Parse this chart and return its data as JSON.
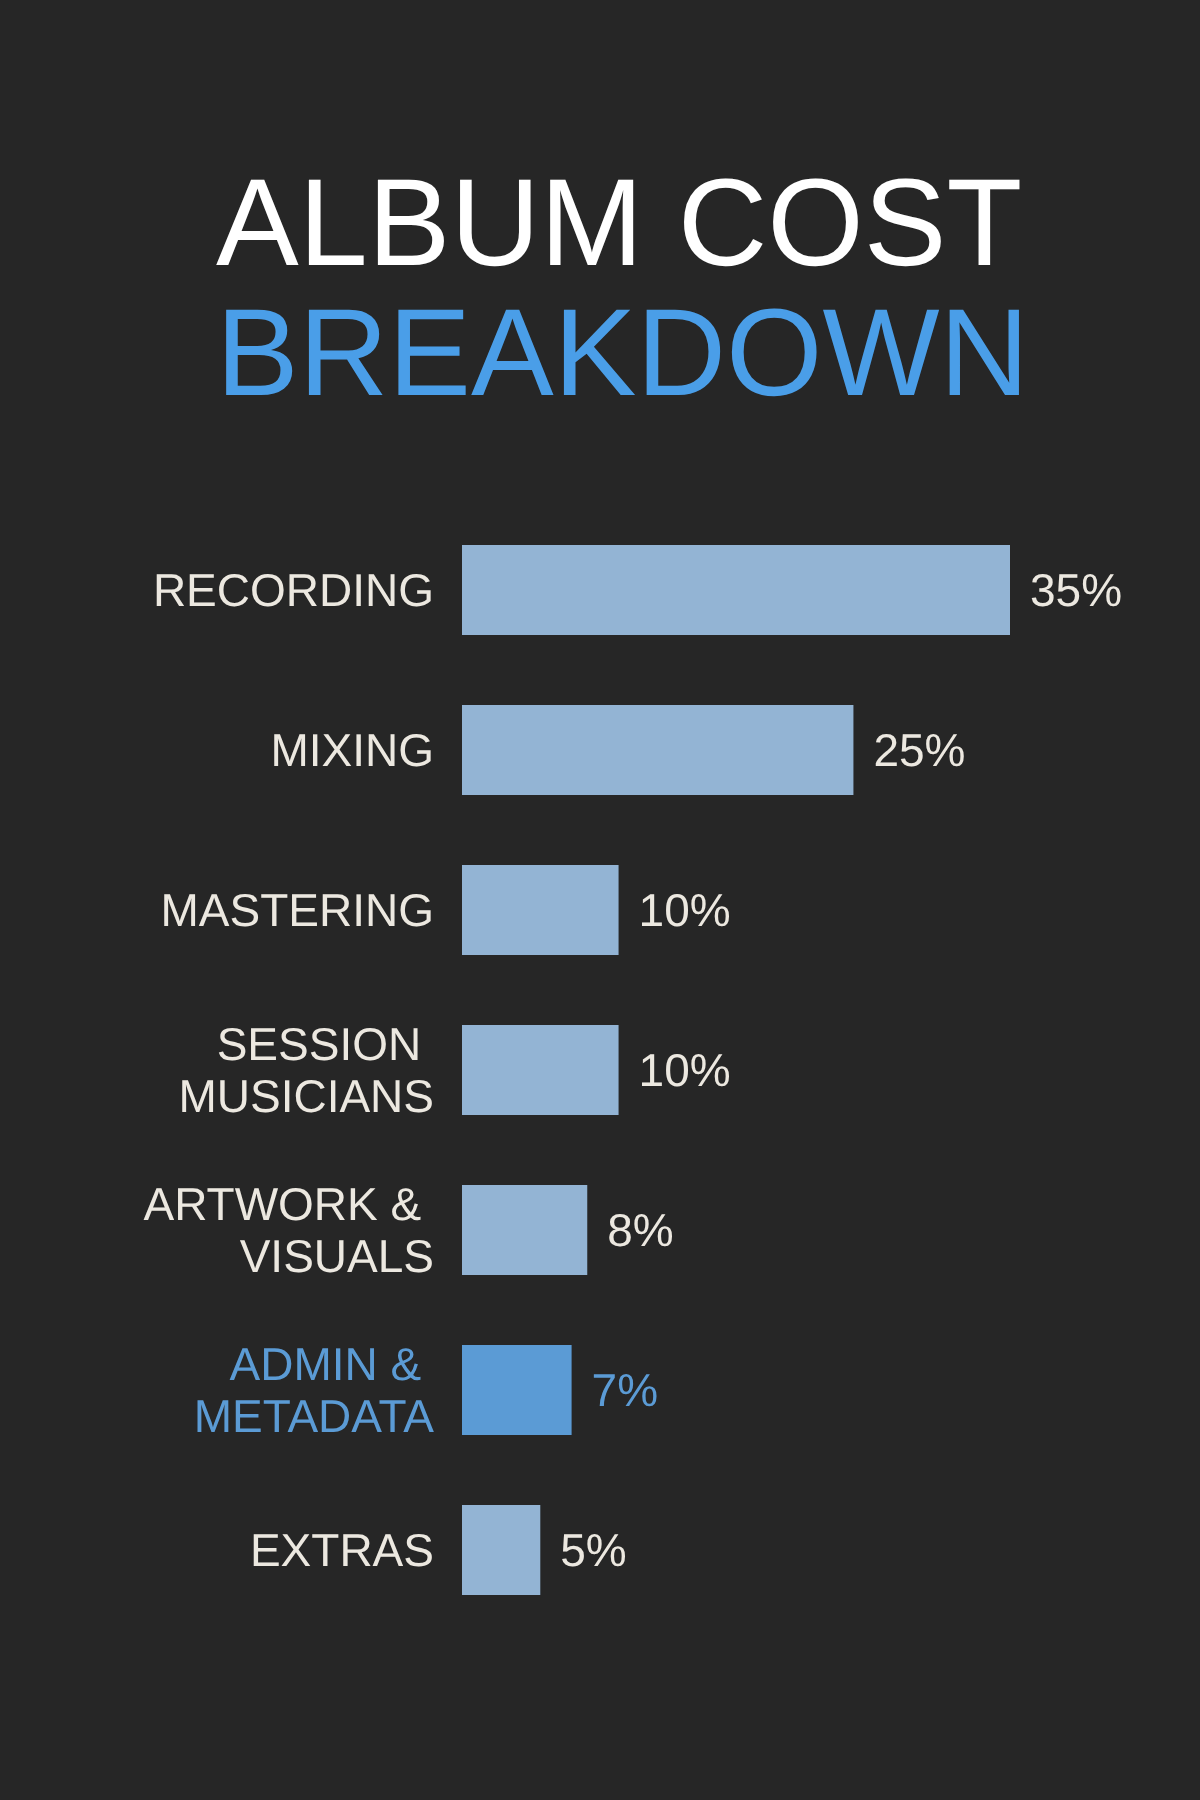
{
  "chart_data": {
    "type": "bar",
    "orientation": "horizontal",
    "title": "ALBUM COST",
    "subtitle": "BREAKDOWN",
    "categories": [
      "RECORDING",
      "MIXING",
      "MASTERING",
      "SESSION MUSICIANS",
      "ARTWORK & VISUALS",
      "ADMIN & METADATA",
      "EXTRAS"
    ],
    "values": [
      35,
      25,
      10,
      10,
      8,
      7,
      5
    ],
    "value_labels": [
      "35%",
      "25%",
      "10%",
      "10%",
      "8%",
      "7%",
      "5%"
    ],
    "colors": [
      "#93b4d4",
      "#93b4d4",
      "#93b4d4",
      "#93b4d4",
      "#93b4d4",
      "#5b9bd5",
      "#93b4d4"
    ]
  }
}
